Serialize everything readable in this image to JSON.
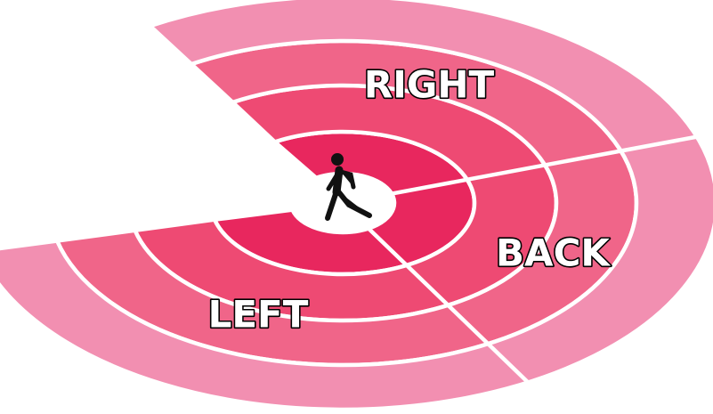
{
  "diagram": {
    "labels": {
      "right": "RIGHT",
      "back": "BACK",
      "left": "LEFT"
    },
    "center_icon": "pedestrian-walking-icon",
    "ring_colors": [
      "#e8275e",
      "#ee4a73",
      "#f06589",
      "#f28fb1"
    ],
    "divider_color": "#ffffff",
    "icon_color": "#111111"
  }
}
